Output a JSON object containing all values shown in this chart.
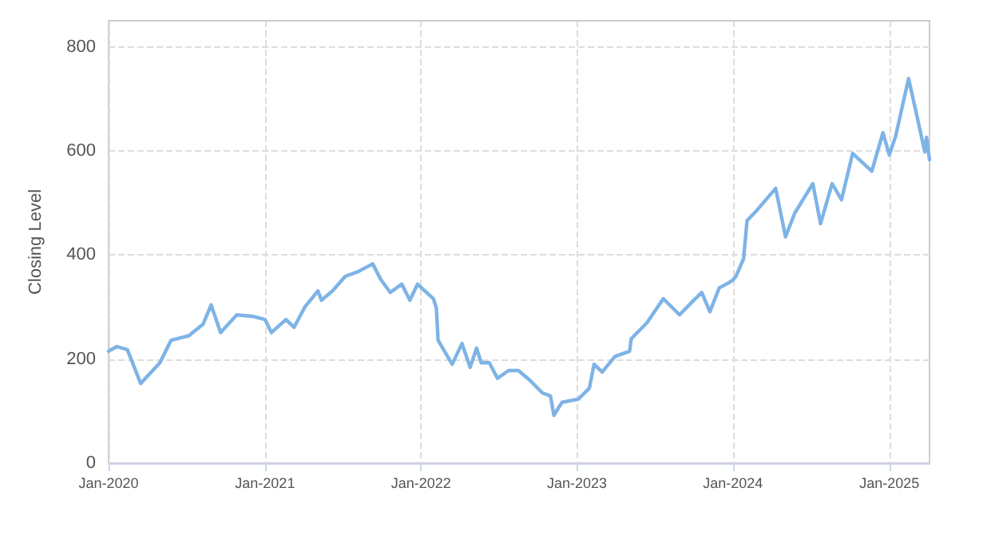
{
  "chart_data": {
    "type": "line",
    "ylabel": "Closing Level",
    "x": [
      "2020-01-01",
      "2020-01-20",
      "2020-02-14",
      "2020-03-16",
      "2020-04-30",
      "2020-05-26",
      "2020-07-07",
      "2020-08-09",
      "2020-08-28",
      "2020-09-19",
      "2020-10-27",
      "2020-12-04",
      "2021-01-01",
      "2021-01-16",
      "2021-02-19",
      "2021-03-10",
      "2021-04-05",
      "2021-05-05",
      "2021-05-13",
      "2021-06-08",
      "2021-07-08",
      "2021-08-07",
      "2021-09-10",
      "2021-09-29",
      "2021-10-21",
      "2021-11-17",
      "2021-12-06",
      "2021-12-24",
      "2022-01-30",
      "2022-02-06",
      "2022-02-10",
      "2022-03-15",
      "2022-04-07",
      "2022-04-26",
      "2022-05-11",
      "2022-05-22",
      "2022-06-10",
      "2022-06-29",
      "2022-07-25",
      "2022-08-17",
      "2022-09-12",
      "2022-10-12",
      "2022-10-31",
      "2022-11-08",
      "2022-11-27",
      "2023-01-04",
      "2023-01-30",
      "2023-02-10",
      "2023-03-01",
      "2023-03-31",
      "2023-05-04",
      "2023-05-08",
      "2023-06-14",
      "2023-07-22",
      "2023-08-29",
      "2023-09-24",
      "2023-10-20",
      "2023-11-08",
      "2023-11-30",
      "2023-12-19",
      "2024-01-01",
      "2024-01-08",
      "2024-01-26",
      "2024-02-03",
      "2024-02-25",
      "2024-04-10",
      "2024-05-03",
      "2024-05-25",
      "2024-07-06",
      "2024-07-24",
      "2024-08-20",
      "2024-09-11",
      "2024-10-07",
      "2024-11-21",
      "2024-12-17",
      "2025-01-01",
      "2025-01-16",
      "2025-02-15",
      "2025-03-06",
      "2025-03-25",
      "2025-03-29",
      "2025-04-05"
    ],
    "series": [
      {
        "color": "#7eb3e6",
        "values": [
          215,
          224,
          218,
          153,
          193,
          236,
          245,
          267,
          304,
          251,
          285,
          282,
          276,
          251,
          276,
          261,
          301,
          331,
          313,
          331,
          359,
          368,
          383,
          353,
          328,
          344,
          313,
          344,
          316,
          298,
          236,
          190,
          230,
          184,
          221,
          193,
          193,
          163,
          178,
          178,
          160,
          135,
          129,
          92,
          117,
          123,
          144,
          190,
          175,
          205,
          215,
          239,
          270,
          316,
          285,
          307,
          328,
          291,
          337,
          345,
          352,
          359,
          393,
          466,
          485,
          528,
          435,
          481,
          537,
          460,
          537,
          506,
          595,
          561,
          635,
          592,
          629,
          739,
          669,
          598,
          626,
          583
        ]
      }
    ],
    "xlim": [
      "2020-01-01",
      "2025-04-05"
    ],
    "xticks": [
      {
        "value": "2020-01-01",
        "label": "Jan-2020"
      },
      {
        "value": "2021-01-01",
        "label": "Jan-2021"
      },
      {
        "value": "2022-01-01",
        "label": "Jan-2022"
      },
      {
        "value": "2023-01-01",
        "label": "Jan-2023"
      },
      {
        "value": "2024-01-01",
        "label": "Jan-2024"
      },
      {
        "value": "2025-01-01",
        "label": "Jan-2025"
      }
    ],
    "ylim": [
      0,
      850
    ],
    "yticks": [
      0,
      200,
      400,
      600,
      800
    ],
    "grid": true,
    "marker": "none",
    "line_style": "solid"
  }
}
